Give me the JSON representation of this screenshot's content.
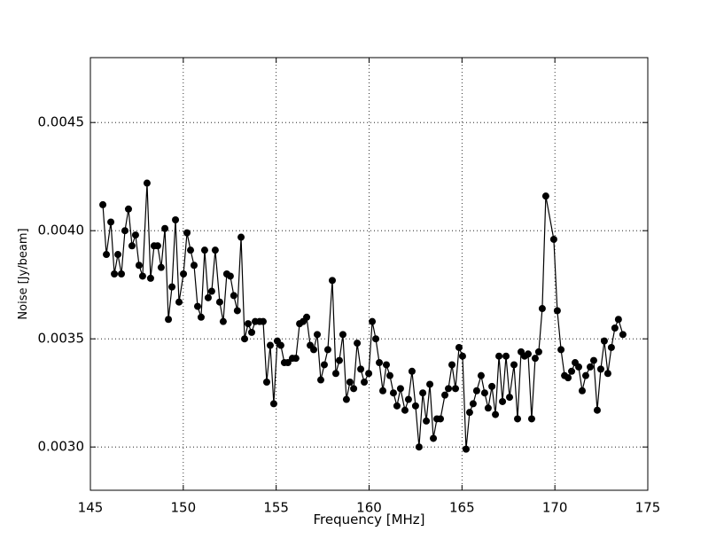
{
  "chart_data": {
    "type": "line",
    "xlabel": "Frequency [MHz]",
    "ylabel": "Noise [Jy/beam]",
    "xlim": [
      145,
      175
    ],
    "xticks": [
      145,
      150,
      155,
      160,
      165,
      170,
      175
    ],
    "ylim": [
      0.0028,
      0.0048
    ],
    "yticks": [
      {
        "value": 0.003,
        "label": "0.0030"
      },
      0.0035,
      {
        "value": 0.004,
        "label": "0.0040"
      },
      0.0045
    ],
    "grid": true,
    "color": "#000000",
    "x": [
      145.67,
      145.86,
      146.1,
      146.29,
      146.48,
      146.67,
      146.86,
      147.05,
      147.24,
      147.43,
      147.62,
      147.81,
      148.05,
      148.24,
      148.43,
      148.62,
      148.81,
      149.01,
      149.2,
      149.39,
      149.58,
      149.77,
      150.01,
      150.2,
      150.39,
      150.58,
      150.77,
      150.96,
      151.15,
      151.34,
      151.53,
      151.72,
      151.96,
      152.15,
      152.34,
      152.53,
      152.72,
      152.91,
      153.11,
      153.3,
      153.49,
      153.68,
      153.87,
      154.11,
      154.3,
      154.49,
      154.68,
      154.87,
      155.06,
      155.25,
      155.44,
      155.63,
      155.87,
      156.06,
      156.26,
      156.45,
      156.64,
      156.83,
      157.02,
      157.21,
      157.4,
      157.59,
      157.78,
      158.02,
      158.21,
      158.4,
      158.59,
      158.78,
      158.97,
      159.17,
      159.36,
      159.55,
      159.74,
      159.98,
      160.17,
      160.36,
      160.55,
      160.74,
      160.93,
      161.12,
      161.31,
      161.5,
      161.69,
      161.93,
      162.12,
      162.31,
      162.5,
      162.69,
      162.89,
      163.08,
      163.27,
      163.46,
      163.65,
      163.84,
      164.08,
      164.27,
      164.46,
      164.65,
      164.84,
      165.03,
      165.22,
      165.41,
      165.6,
      165.79,
      166.03,
      166.22,
      166.41,
      166.61,
      166.8,
      166.99,
      167.18,
      167.37,
      167.56,
      167.8,
      167.99,
      168.18,
      168.37,
      168.56,
      168.75,
      168.94,
      169.13,
      169.32,
      169.51,
      169.94,
      170.13,
      170.33,
      170.52,
      170.71,
      170.9,
      171.09,
      171.28,
      171.47,
      171.66,
      171.9,
      172.09,
      172.28,
      172.47,
      172.66,
      172.85,
      173.04,
      173.23,
      173.42,
      173.66
    ],
    "values": [
      0.00412,
      0.00389,
      0.00404,
      0.0038,
      0.00389,
      0.0038,
      0.004,
      0.0041,
      0.00393,
      0.00398,
      0.00384,
      0.00379,
      0.00422,
      0.00378,
      0.00393,
      0.00393,
      0.00383,
      0.00401,
      0.00359,
      0.00374,
      0.00405,
      0.00367,
      0.0038,
      0.00399,
      0.00391,
      0.00384,
      0.00365,
      0.0036,
      0.00391,
      0.00369,
      0.00372,
      0.00391,
      0.00367,
      0.00358,
      0.0038,
      0.00379,
      0.0037,
      0.00363,
      0.00397,
      0.0035,
      0.00357,
      0.00353,
      0.00358,
      0.00358,
      0.00358,
      0.0033,
      0.00347,
      0.0032,
      0.00349,
      0.00347,
      0.00339,
      0.00339,
      0.00341,
      0.00341,
      0.00357,
      0.00358,
      0.0036,
      0.00347,
      0.00345,
      0.00352,
      0.00331,
      0.00338,
      0.00345,
      0.00377,
      0.00334,
      0.0034,
      0.00352,
      0.00322,
      0.0033,
      0.00327,
      0.00348,
      0.00336,
      0.0033,
      0.00334,
      0.00358,
      0.0035,
      0.00339,
      0.00326,
      0.00338,
      0.00333,
      0.00325,
      0.00319,
      0.00327,
      0.00317,
      0.00322,
      0.00335,
      0.00319,
      0.003,
      0.00325,
      0.00312,
      0.00329,
      0.00304,
      0.00313,
      0.00313,
      0.00324,
      0.00327,
      0.00338,
      0.00327,
      0.00346,
      0.00342,
      0.00299,
      0.00316,
      0.0032,
      0.00326,
      0.00333,
      0.00325,
      0.00318,
      0.00328,
      0.00315,
      0.00342,
      0.00321,
      0.00342,
      0.00323,
      0.00338,
      0.00313,
      0.00344,
      0.00342,
      0.00343,
      0.00313,
      0.00341,
      0.00344,
      0.00364,
      0.00416,
      0.00396,
      0.00363,
      0.00345,
      0.00333,
      0.00332,
      0.00335,
      0.00339,
      0.00337,
      0.00326,
      0.00333,
      0.00337,
      0.0034,
      0.00317,
      0.00336,
      0.00349,
      0.00334,
      0.00346,
      0.00355,
      0.00359,
      0.00352
    ]
  }
}
